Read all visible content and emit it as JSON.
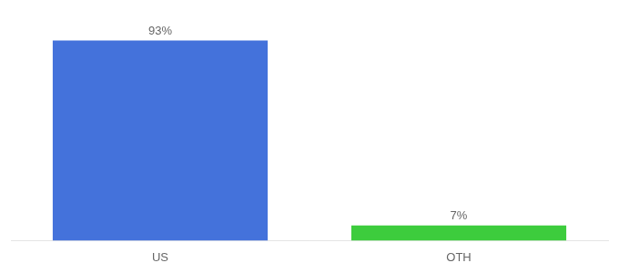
{
  "chart_data": {
    "type": "bar",
    "categories": [
      "US",
      "OTH"
    ],
    "values": [
      93,
      7
    ],
    "value_labels": [
      "93%",
      "7%"
    ],
    "colors": [
      "#4472db",
      "#3dcc3d"
    ],
    "ylim": [
      0,
      100
    ],
    "grid": false,
    "data_labels": true,
    "tick_labels": "x"
  }
}
